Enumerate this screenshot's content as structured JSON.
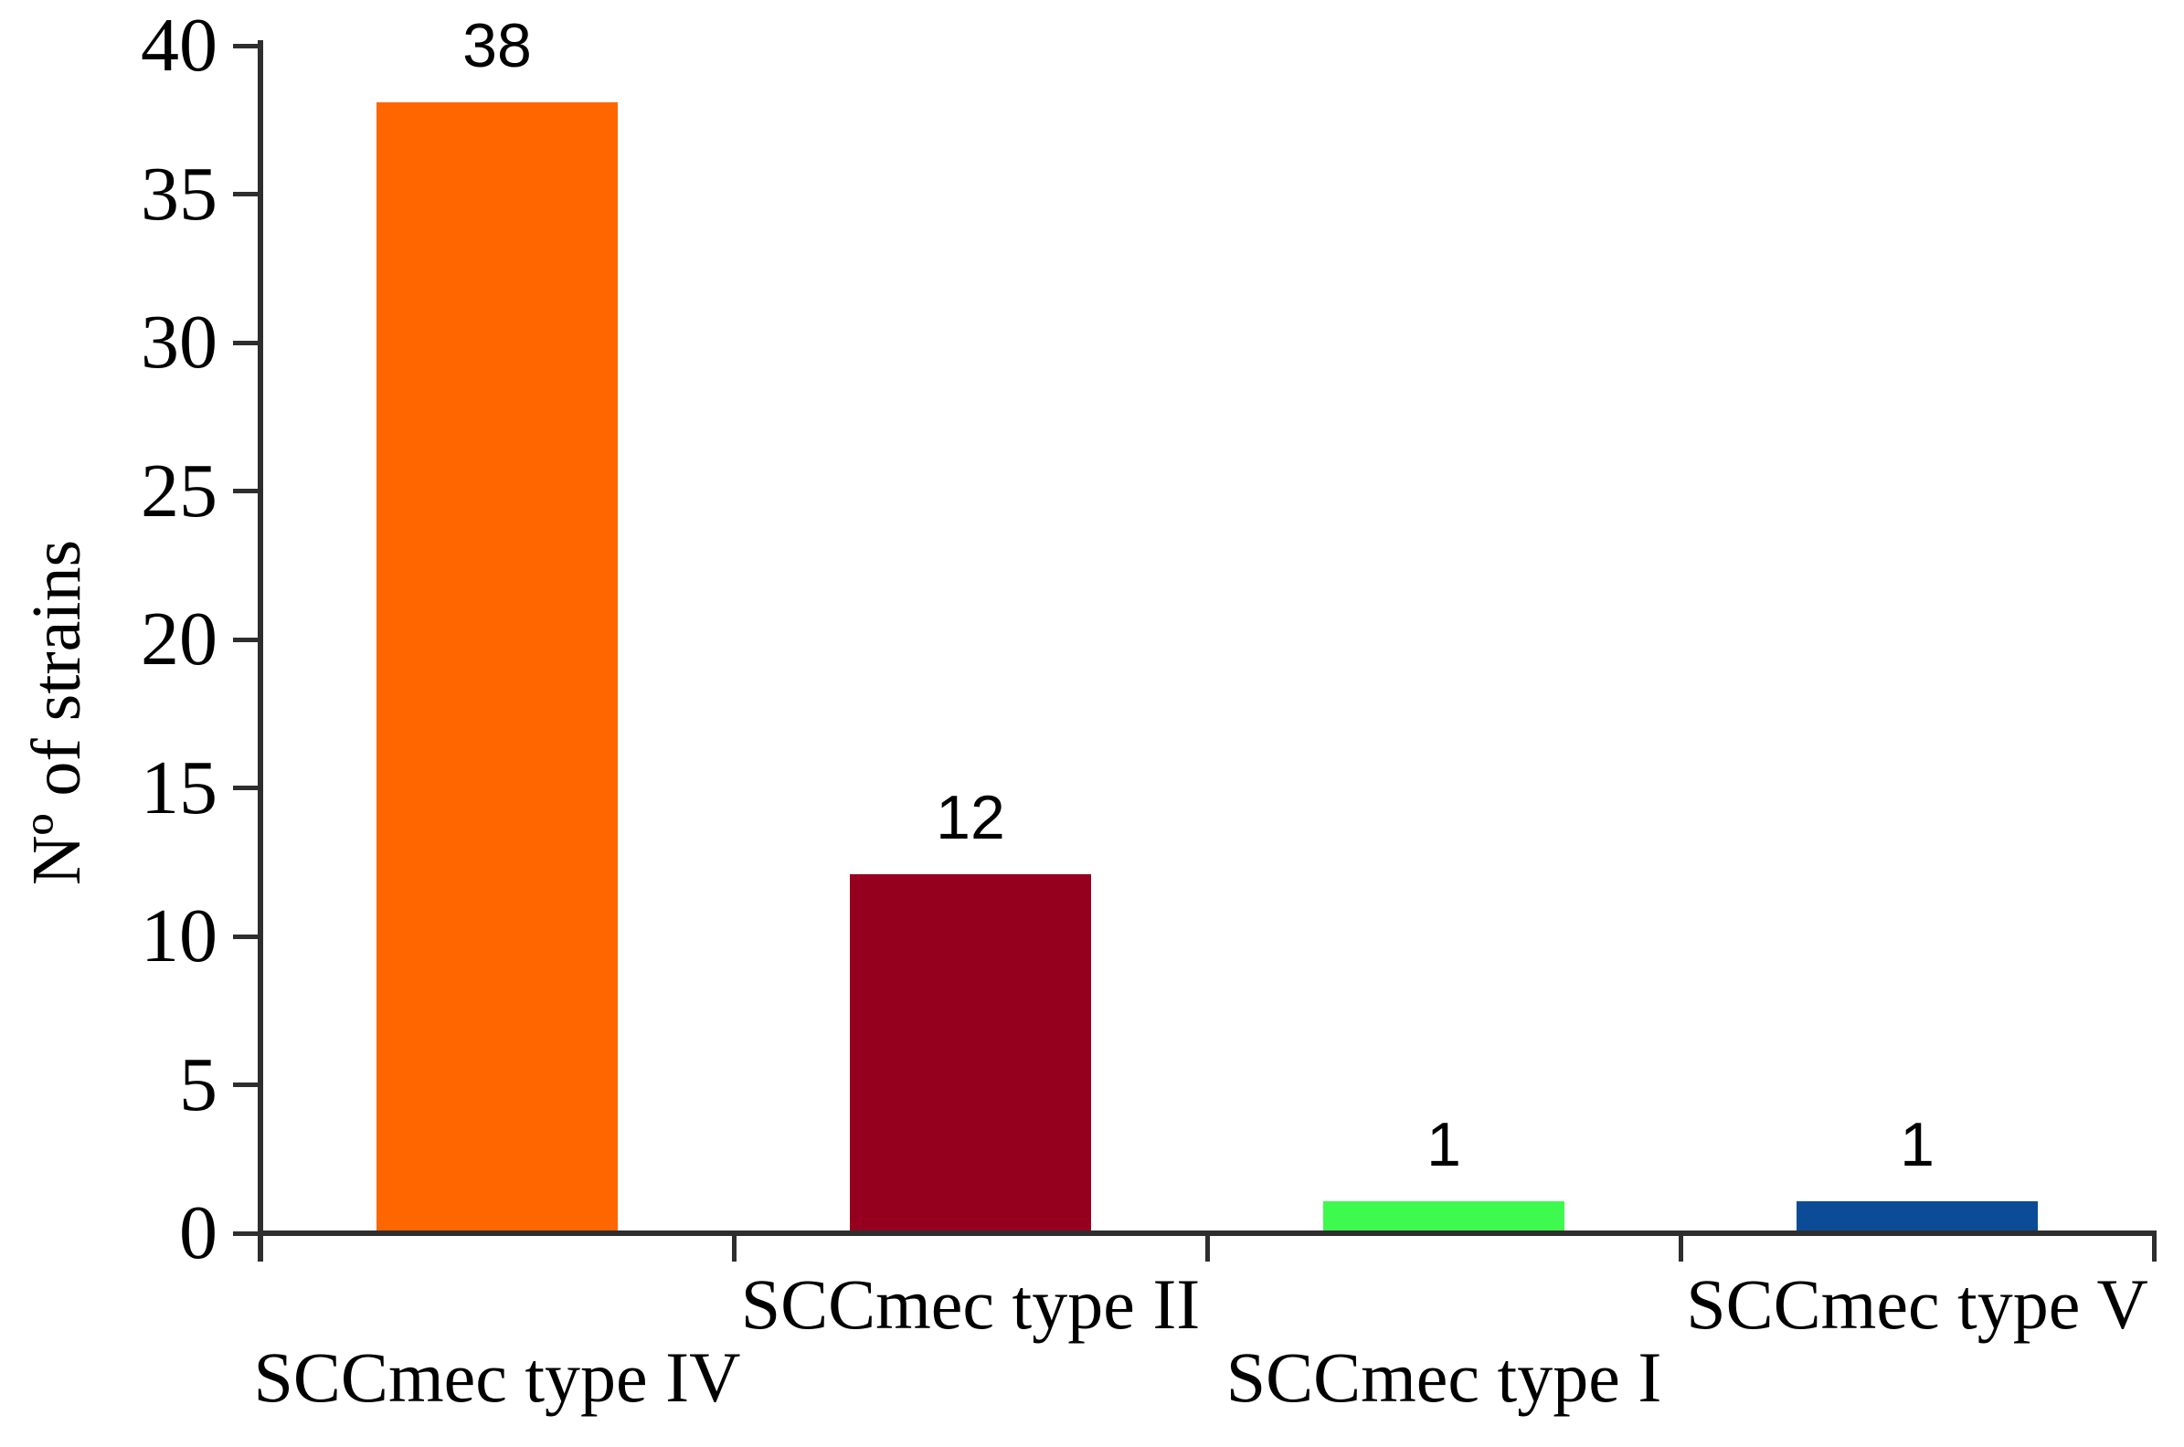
{
  "chart_data": {
    "type": "bar",
    "title": "",
    "xlabel": "",
    "ylabel": "Nº of strains",
    "categories": [
      "SCCmec type IV",
      "SCCmec type II",
      "SCCmec type I",
      "SCCmec type V"
    ],
    "values": [
      38,
      12,
      1,
      1
    ],
    "value_labels": [
      "38",
      "12",
      "1",
      "1"
    ],
    "bar_colors": [
      "#FF6600",
      "#96001F",
      "#3EF94E",
      "#0C4C96"
    ],
    "ylim": [
      0,
      40
    ],
    "yticks": [
      0,
      5,
      10,
      15,
      20,
      25,
      30,
      35,
      40
    ],
    "ytick_labels": [
      "0",
      "5",
      "10",
      "15",
      "20",
      "25",
      "30",
      "35",
      "40"
    ],
    "grid": false,
    "legend_position": "none",
    "axis_color": "#2e2e2e",
    "text_color": "#000000",
    "background_color": "#ffffff",
    "label_rows": [
      "lower",
      "upper",
      "lower",
      "upper"
    ]
  }
}
